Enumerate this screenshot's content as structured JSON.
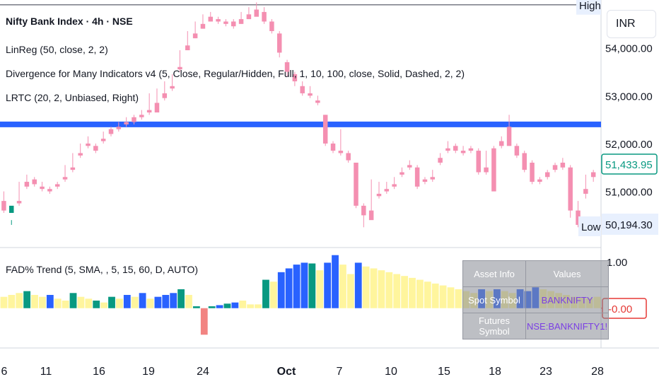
{
  "title": "Nifty Bank Index · 4h · NSE",
  "currency": "INR",
  "indicators": [
    "LinReg (50, close, 2, 2)",
    "Divergence for Many Indicators v4 (5, Close, Regular/Hidden, Full, 1, 10, 100, close, Solid, Dashed, 2, 2)",
    "LRTC (20, 2, Unbiased, Right)"
  ],
  "sub_indicator": "FAD% Trend (5, SMA, , 5, 15, 60, D, AUTO)",
  "high_label": "High",
  "low_label": "Low",
  "last_price_label": "51,433.95",
  "low_price_label": "50,194.30",
  "sub_last_label": "-0.00",
  "sub_axis_label": "1.00",
  "colors": {
    "up": "#089981",
    "down": "#f48fb1",
    "level_line": "#2962ff",
    "hist_yellow": "#fff59d",
    "hist_blue": "#2962ff",
    "hist_green": "#089981",
    "hist_red": "#f28482"
  },
  "table": {
    "headers": [
      "Asset Info",
      "Values"
    ],
    "rows": [
      [
        "Spot Symbol",
        "BANKNIFTY"
      ],
      [
        "Futures Symbol",
        "NSE:BANKNIFTY1!"
      ]
    ]
  },
  "chart_data": {
    "type": "candlestick",
    "y_ticks": [
      51000,
      52000,
      53000,
      54000
    ],
    "y_range": [
      49900,
      55000
    ],
    "high_level": 54900,
    "level_line": 52400,
    "x_ticks": [
      "6",
      "11",
      "16",
      "19",
      "24",
      "Oct",
      "7",
      "10",
      "15",
      "18",
      "23",
      "28"
    ],
    "candles": [
      [
        50800,
        51000,
        50600,
        50550
      ],
      [
        50550,
        50400,
        50700,
        50300
      ],
      [
        50800,
        51200,
        50750,
        50700
      ],
      [
        51200,
        51350,
        51100,
        51050
      ],
      [
        51250,
        51300,
        51150,
        51100
      ],
      [
        51100,
        51200,
        51050,
        51000
      ],
      [
        51050,
        51100,
        51000,
        50950
      ],
      [
        51150,
        51200,
        51100,
        51050
      ],
      [
        51300,
        51550,
        51250,
        51200
      ],
      [
        51500,
        51800,
        51450,
        51400
      ],
      [
        51800,
        52000,
        51750,
        51700
      ],
      [
        52000,
        52150,
        51950,
        51900
      ],
      [
        51950,
        52000,
        51850,
        51800
      ],
      [
        52100,
        52250,
        52050,
        52000
      ],
      [
        52300,
        52350,
        52200,
        52150
      ],
      [
        52350,
        52450,
        52300,
        52250
      ],
      [
        52450,
        52550,
        52400,
        52350
      ],
      [
        52550,
        52600,
        52450,
        52400
      ],
      [
        52600,
        52700,
        52550,
        52500
      ],
      [
        52700,
        53050,
        52650,
        52600
      ],
      [
        52850,
        53150,
        52650,
        52800
      ],
      [
        53050,
        53300,
        52950,
        52900
      ],
      [
        53200,
        53450,
        53150,
        53100
      ],
      [
        53600,
        53950,
        53550,
        53500
      ],
      [
        54050,
        54350,
        53950,
        53950
      ],
      [
        54300,
        54550,
        54200,
        54200
      ],
      [
        54500,
        54700,
        54400,
        54400
      ],
      [
        54650,
        54750,
        54550,
        54550
      ],
      [
        54600,
        54650,
        54550,
        54500
      ],
      [
        54550,
        54600,
        54500,
        54450
      ],
      [
        54550,
        54600,
        54450,
        54400
      ],
      [
        54600,
        54750,
        54500,
        54500
      ],
      [
        54700,
        54850,
        54600,
        54600
      ],
      [
        54800,
        54950,
        54650,
        54700
      ],
      [
        54750,
        54850,
        54550,
        54500
      ],
      [
        54550,
        54600,
        54350,
        54300
      ],
      [
        54300,
        54350,
        53900,
        53800
      ],
      [
        53700,
        53750,
        53500,
        53400
      ],
      [
        53450,
        53500,
        53300,
        53200
      ],
      [
        53200,
        53300,
        53050,
        53000
      ],
      [
        53050,
        53200,
        53000,
        52950
      ],
      [
        52900,
        53000,
        52850,
        52800
      ],
      [
        52600,
        52600,
        52000,
        51950
      ],
      [
        52000,
        52050,
        51850,
        51800
      ],
      [
        51850,
        52300,
        51800,
        51750
      ],
      [
        51800,
        51850,
        51650,
        51600
      ],
      [
        51600,
        51600,
        50700,
        50650
      ],
      [
        50700,
        50750,
        50500,
        50250
      ],
      [
        50600,
        51250,
        50400,
        50550
      ],
      [
        50950,
        51200,
        50900,
        50850
      ],
      [
        51050,
        51200,
        51000,
        50950
      ],
      [
        51150,
        51300,
        51100,
        51050
      ],
      [
        51400,
        51500,
        51350,
        51300
      ],
      [
        51550,
        51650,
        51500,
        51450
      ],
      [
        51500,
        51550,
        51100,
        51050
      ],
      [
        51250,
        51300,
        51200,
        51150
      ],
      [
        51300,
        51450,
        51250,
        51200
      ],
      [
        51700,
        51800,
        51600,
        51550
      ],
      [
        51900,
        52050,
        51850,
        51800
      ],
      [
        51950,
        52000,
        51850,
        51800
      ],
      [
        51850,
        51950,
        51800,
        51750
      ],
      [
        51900,
        51950,
        51850,
        51800
      ],
      [
        51850,
        51900,
        51400,
        51350
      ],
      [
        51500,
        51850,
        51400,
        51350
      ],
      [
        51900,
        51950,
        51000,
        51050
      ],
      [
        52050,
        52150,
        51950,
        51900
      ],
      [
        52350,
        52600,
        51950,
        51950
      ],
      [
        51950,
        52000,
        51750,
        51700
      ],
      [
        51800,
        51850,
        51450,
        51400
      ],
      [
        51600,
        51650,
        51200,
        51150
      ],
      [
        51250,
        51300,
        51200,
        51150
      ],
      [
        51400,
        51450,
        51300,
        51250
      ],
      [
        51550,
        51600,
        51450,
        51400
      ],
      [
        51600,
        51700,
        51500,
        51450
      ],
      [
        51500,
        51550,
        50600,
        50450
      ],
      [
        50600,
        50800,
        50300,
        50250
      ],
      [
        51050,
        51350,
        50950,
        50850
      ],
      [
        51400,
        51450,
        51300,
        51200
      ]
    ],
    "histogram": [
      {
        "v": 0.3,
        "c": "y"
      },
      {
        "v": 0.35,
        "c": "y"
      },
      {
        "v": 0.4,
        "c": "y"
      },
      {
        "v": 0.45,
        "c": "g"
      },
      {
        "v": 0.35,
        "c": "y"
      },
      {
        "v": 0.3,
        "c": "y"
      },
      {
        "v": 0.35,
        "c": "b"
      },
      {
        "v": 0.25,
        "c": "y"
      },
      {
        "v": 0.2,
        "c": "y"
      },
      {
        "v": 0.4,
        "c": "g"
      },
      {
        "v": 0.3,
        "c": "y"
      },
      {
        "v": 0.25,
        "c": "y"
      },
      {
        "v": 0.2,
        "c": "g"
      },
      {
        "v": 0.15,
        "c": "y"
      },
      {
        "v": 0.3,
        "c": "g"
      },
      {
        "v": 0.25,
        "c": "y"
      },
      {
        "v": 0.35,
        "c": "b"
      },
      {
        "v": 0.3,
        "c": "y"
      },
      {
        "v": 0.4,
        "c": "b"
      },
      {
        "v": 0.25,
        "c": "y"
      },
      {
        "v": 0.3,
        "c": "b"
      },
      {
        "v": 0.35,
        "c": "b"
      },
      {
        "v": 0.4,
        "c": "b"
      },
      {
        "v": 0.5,
        "c": "g"
      },
      {
        "v": 0.35,
        "c": "y"
      },
      {
        "v": 0.05,
        "c": "g"
      },
      {
        "v": -0.7,
        "c": "r"
      },
      {
        "v": 0.05,
        "c": "g"
      },
      {
        "v": 0.08,
        "c": "b"
      },
      {
        "v": 0.12,
        "c": "g"
      },
      {
        "v": 0.15,
        "c": "b"
      },
      {
        "v": 0.2,
        "c": "y"
      },
      {
        "v": 0.1,
        "c": "y"
      },
      {
        "v": 0.1,
        "c": "y"
      },
      {
        "v": 0.75,
        "c": "g"
      },
      {
        "v": 0.7,
        "c": "y"
      },
      {
        "v": 0.95,
        "c": "b"
      },
      {
        "v": 1.05,
        "c": "b"
      },
      {
        "v": 1.15,
        "c": "b"
      },
      {
        "v": 1.2,
        "c": "b"
      },
      {
        "v": 1.18,
        "c": "g"
      },
      {
        "v": 1.0,
        "c": "y"
      },
      {
        "v": 1.2,
        "c": "b"
      },
      {
        "v": 1.4,
        "c": "b"
      },
      {
        "v": 1.15,
        "c": "y"
      },
      {
        "v": 0.9,
        "c": "y"
      },
      {
        "v": 1.2,
        "c": "b"
      },
      {
        "v": 1.1,
        "c": "y"
      },
      {
        "v": 1.05,
        "c": "y"
      },
      {
        "v": 1.0,
        "c": "y"
      },
      {
        "v": 0.95,
        "c": "y"
      },
      {
        "v": 0.9,
        "c": "y"
      },
      {
        "v": 0.85,
        "c": "y"
      },
      {
        "v": 0.8,
        "c": "y"
      },
      {
        "v": 0.75,
        "c": "y"
      },
      {
        "v": 0.7,
        "c": "y"
      },
      {
        "v": 0.65,
        "c": "y"
      },
      {
        "v": 0.6,
        "c": "y"
      },
      {
        "v": 0.55,
        "c": "y"
      },
      {
        "v": 0.5,
        "c": "y"
      },
      {
        "v": 0.45,
        "c": "y"
      },
      {
        "v": 0.4,
        "c": "y"
      },
      {
        "v": 0.5,
        "c": "b"
      },
      {
        "v": 0.45,
        "c": "y"
      },
      {
        "v": 0.5,
        "c": "b"
      },
      {
        "v": 0.45,
        "c": "y"
      },
      {
        "v": 0.4,
        "c": "y"
      },
      {
        "v": 0.5,
        "c": "b"
      },
      {
        "v": 0.45,
        "c": "b"
      },
      {
        "v": 0.55,
        "c": "b"
      },
      {
        "v": 0.5,
        "c": "y"
      },
      {
        "v": 0.45,
        "c": "y"
      },
      {
        "v": 0.4,
        "c": "y"
      },
      {
        "v": 0.35,
        "c": "y"
      },
      {
        "v": 0.3,
        "c": "y"
      },
      {
        "v": 0.28,
        "c": "y"
      },
      {
        "v": 0.26,
        "c": "y"
      },
      {
        "v": 0.3,
        "c": "y"
      }
    ],
    "histogram_range": [
      -1.05,
      1.6
    ]
  }
}
